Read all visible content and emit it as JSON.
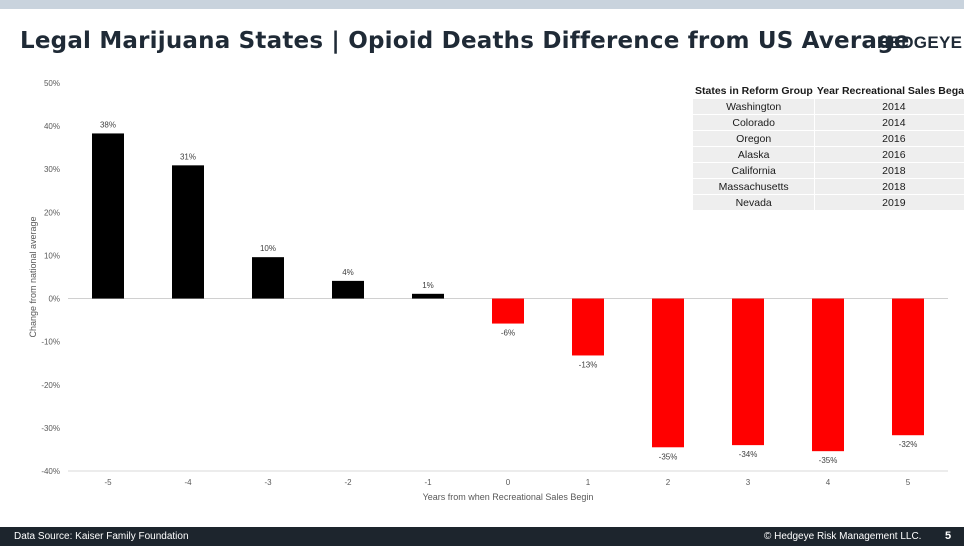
{
  "header": {
    "title": "Legal Marijuana States | Opioid Deaths Difference from US Average",
    "logo": "HEDGEYE"
  },
  "colors": {
    "positive_bar": "#000000",
    "negative_bar": "#ff0000",
    "top_band": "#c9d3dd",
    "footer_bg": "#1d252d"
  },
  "chart_data": {
    "type": "bar",
    "title": "",
    "xlabel": "Years from when Recreational Sales Begin",
    "ylabel": "Change from national average",
    "categories": [
      "-5",
      "-4",
      "-3",
      "-2",
      "-1",
      "0",
      "1",
      "2",
      "3",
      "4",
      "5"
    ],
    "values": [
      38.3,
      30.9,
      9.6,
      4.1,
      1.1,
      -5.8,
      -13.2,
      -34.5,
      -34.0,
      -35.4,
      -31.7
    ],
    "data_labels": [
      "38%",
      "31%",
      "10%",
      "4%",
      "1%",
      "-6%",
      "-13%",
      "-35%",
      "-34%",
      "-35%",
      "-32%"
    ],
    "ylim": [
      -40,
      50
    ],
    "yticks": [
      50,
      40,
      30,
      20,
      10,
      0,
      -10,
      -20,
      -30,
      -40
    ],
    "ytick_labels": [
      "50%",
      "40%",
      "30%",
      "20%",
      "10%",
      "0%",
      "-10%",
      "-20%",
      "-30%",
      "-40%"
    ],
    "grid": false,
    "bar_colors": {
      "positive": "#000000",
      "negative": "#ff0000"
    }
  },
  "table": {
    "headers": [
      "States in Reform Group",
      "Year Recreational Sales Began"
    ],
    "rows": [
      {
        "state": "Washington",
        "year": "2014"
      },
      {
        "state": "Colorado",
        "year": "2014"
      },
      {
        "state": "Oregon",
        "year": "2016"
      },
      {
        "state": "Alaska",
        "year": "2016"
      },
      {
        "state": "California",
        "year": "2018"
      },
      {
        "state": "Massachusetts",
        "year": "2018"
      },
      {
        "state": "Nevada",
        "year": "2019"
      }
    ]
  },
  "footer": {
    "source": "Data Source: Kaiser Family Foundation",
    "copyright": "© Hedgeye Risk Management LLC.",
    "page_number": "5"
  }
}
